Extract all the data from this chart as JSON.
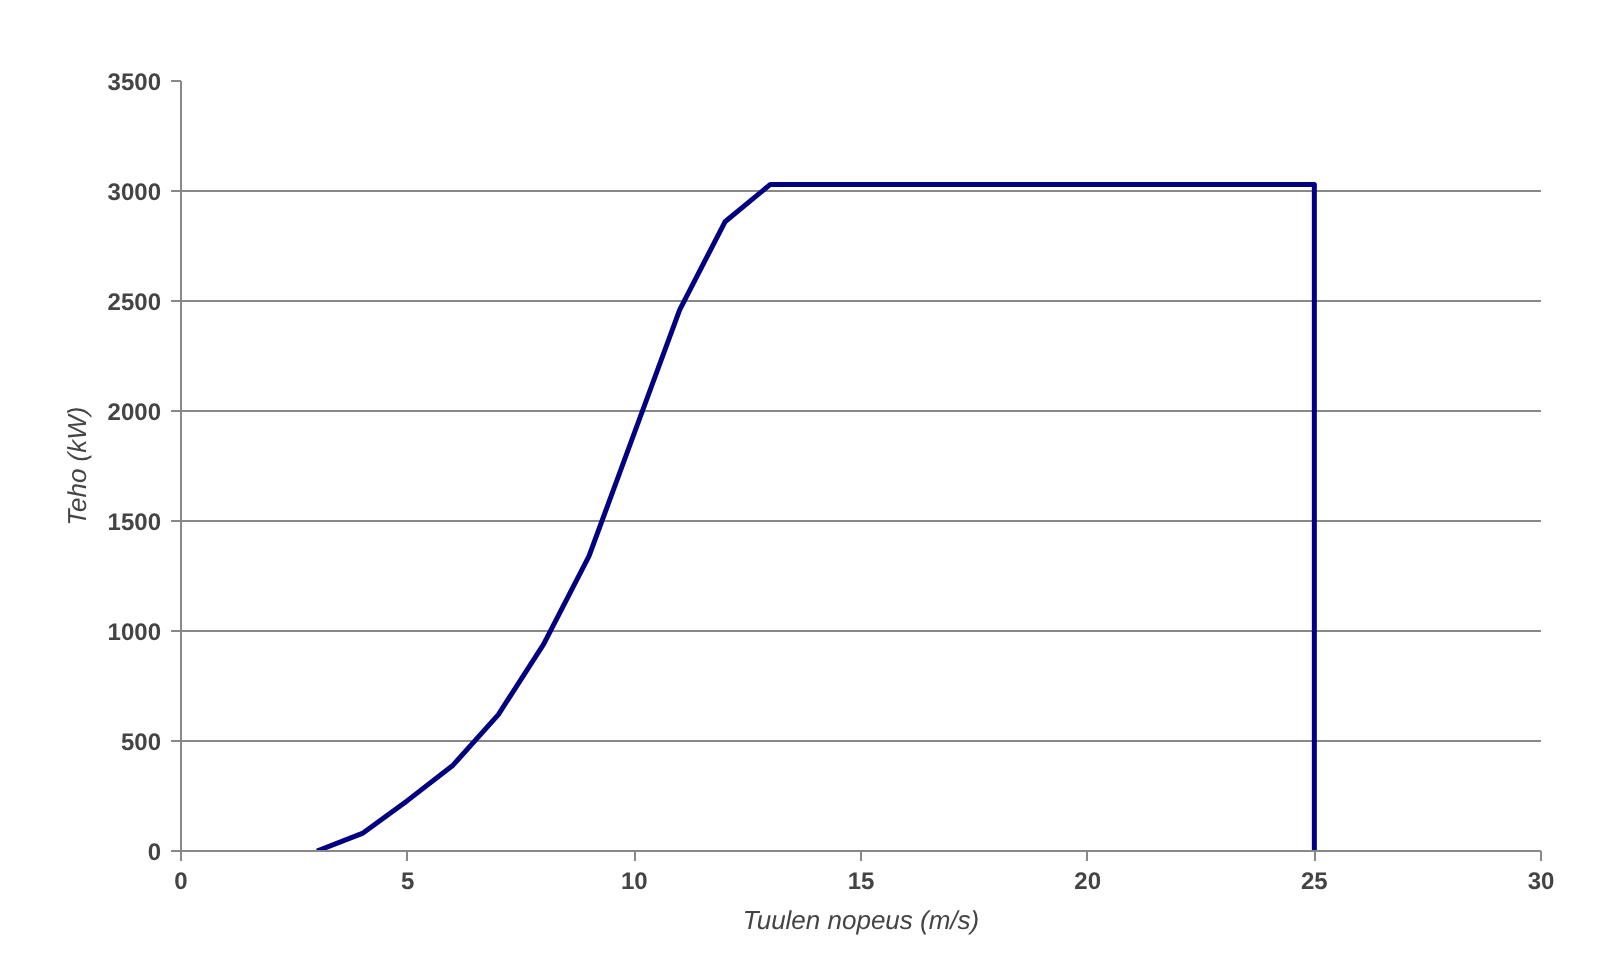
{
  "chart_data": {
    "type": "line",
    "xlabel": "Tuulen nopeus (m/s)",
    "ylabel": "Teho (kW)",
    "x": [
      3,
      4,
      5,
      6,
      7,
      8,
      9,
      10,
      11,
      12,
      13,
      25,
      25
    ],
    "series": [
      {
        "color": "#000080",
        "values": [
          0,
          80,
          230,
          390,
          620,
          940,
          1340,
          1900,
          2460,
          2860,
          3030,
          3030,
          0
        ]
      }
    ],
    "xlim": [
      0,
      30
    ],
    "xticks": [
      0,
      5,
      10,
      15,
      20,
      25,
      30
    ],
    "ylim": [
      0,
      3500
    ],
    "yticks": [
      0,
      500,
      1000,
      1500,
      2000,
      2500,
      3000,
      3500
    ],
    "grid": "y",
    "marker": "none",
    "line_style": "solid"
  }
}
